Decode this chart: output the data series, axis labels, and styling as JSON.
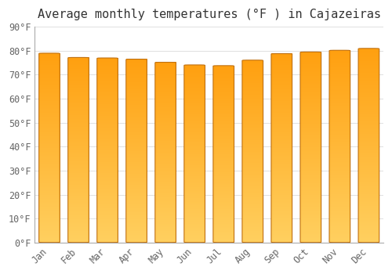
{
  "title": "Average monthly temperatures (°F ) in Cajazeiras",
  "months": [
    "Jan",
    "Feb",
    "Mar",
    "Apr",
    "May",
    "Jun",
    "Jul",
    "Aug",
    "Sep",
    "Oct",
    "Nov",
    "Dec"
  ],
  "values": [
    79.0,
    77.2,
    77.0,
    76.5,
    75.2,
    74.1,
    73.8,
    76.1,
    78.8,
    79.5,
    80.2,
    81.0
  ],
  "bar_color_top": "#FFA010",
  "bar_color_bottom": "#FFD060",
  "bar_edge_color": "#C07010",
  "background_color": "#FFFFFF",
  "grid_color": "#E0E0E0",
  "text_color": "#666666",
  "title_color": "#333333",
  "ylim": [
    0,
    90
  ],
  "yticks": [
    0,
    10,
    20,
    30,
    40,
    50,
    60,
    70,
    80,
    90
  ],
  "ytick_labels": [
    "0°F",
    "10°F",
    "20°F",
    "30°F",
    "40°F",
    "50°F",
    "60°F",
    "70°F",
    "80°F",
    "90°F"
  ],
  "title_fontsize": 11,
  "tick_fontsize": 8.5,
  "figsize": [
    5.0,
    3.5
  ],
  "dpi": 100,
  "bar_width": 0.72
}
